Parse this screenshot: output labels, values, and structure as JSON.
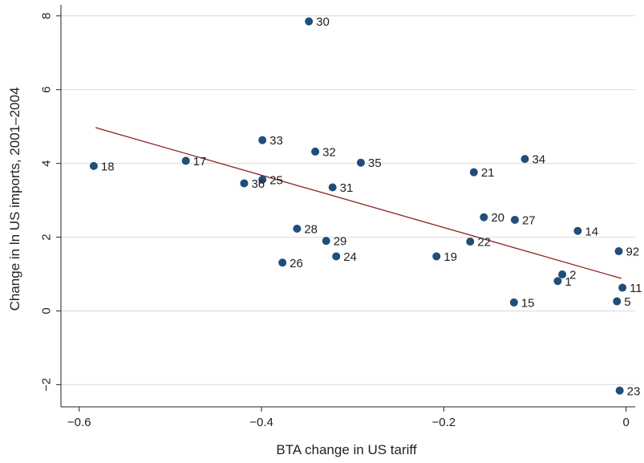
{
  "chart_data": {
    "type": "scatter",
    "xlabel": "BTA change in US tariff",
    "ylabel": "Change in ln US imports, 2001–2004",
    "xlim": [
      -0.62,
      0.01
    ],
    "ylim": [
      -2.6,
      8.3
    ],
    "xticks": [
      -0.6,
      -0.4,
      -0.2,
      0
    ],
    "yticks": [
      -2,
      0,
      2,
      4,
      6,
      8
    ],
    "xtick_labels": [
      "−0.6",
      "−0.4",
      "−0.2",
      "0"
    ],
    "ytick_labels": [
      "−2",
      "0",
      "2",
      "4",
      "6",
      "8"
    ],
    "grid": "horizontal",
    "colors": {
      "point": "#1f4e79",
      "fit_line": "#8b2323",
      "grid": "#d9d9d9"
    },
    "points": [
      {
        "label": "30",
        "x": -0.348,
        "y": 7.85
      },
      {
        "label": "33",
        "x": -0.399,
        "y": 4.63
      },
      {
        "label": "32",
        "x": -0.341,
        "y": 4.32
      },
      {
        "label": "35",
        "x": -0.291,
        "y": 4.02
      },
      {
        "label": "34",
        "x": -0.111,
        "y": 4.12
      },
      {
        "label": "21",
        "x": -0.167,
        "y": 3.76
      },
      {
        "label": "18",
        "x": -0.584,
        "y": 3.93
      },
      {
        "label": "17",
        "x": -0.483,
        "y": 4.07
      },
      {
        "label": "25",
        "x": -0.399,
        "y": 3.56
      },
      {
        "label": "36",
        "x": -0.419,
        "y": 3.46
      },
      {
        "label": "31",
        "x": -0.322,
        "y": 3.35
      },
      {
        "label": "20",
        "x": -0.156,
        "y": 2.54
      },
      {
        "label": "27",
        "x": -0.122,
        "y": 2.47
      },
      {
        "label": "14",
        "x": -0.053,
        "y": 2.17
      },
      {
        "label": "28",
        "x": -0.361,
        "y": 2.23
      },
      {
        "label": "29",
        "x": -0.329,
        "y": 1.9
      },
      {
        "label": "22",
        "x": -0.171,
        "y": 1.88
      },
      {
        "label": "92",
        "x": -0.008,
        "y": 1.62
      },
      {
        "label": "24",
        "x": -0.318,
        "y": 1.48
      },
      {
        "label": "19",
        "x": -0.208,
        "y": 1.48
      },
      {
        "label": "26",
        "x": -0.377,
        "y": 1.31
      },
      {
        "label": "2",
        "x": -0.07,
        "y": 0.99
      },
      {
        "label": "1",
        "x": -0.075,
        "y": 0.81
      },
      {
        "label": "11",
        "x": -0.004,
        "y": 0.63
      },
      {
        "label": "5",
        "x": -0.01,
        "y": 0.26
      },
      {
        "label": "15",
        "x": -0.123,
        "y": 0.23
      },
      {
        "label": "23",
        "x": -0.007,
        "y": -2.16
      }
    ],
    "fit_line": {
      "x": [
        -0.582,
        -0.005
      ],
      "y": [
        4.97,
        0.88
      ]
    }
  }
}
